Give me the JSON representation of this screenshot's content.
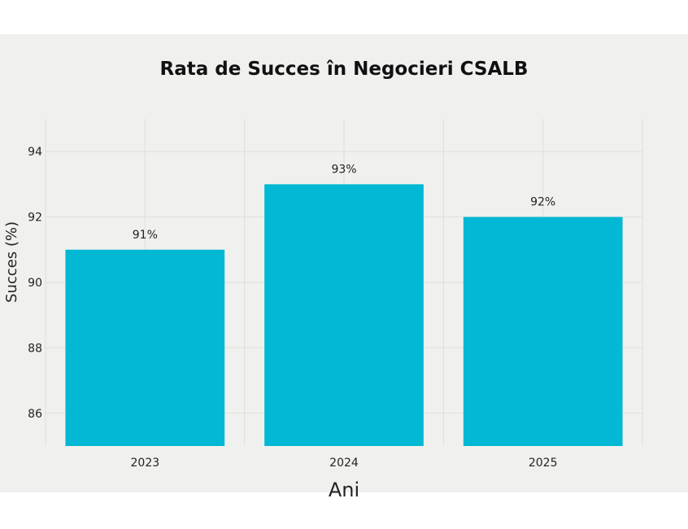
{
  "chart_data": {
    "type": "bar",
    "title": "Rata de Succes în Negocieri CSALB",
    "xlabel": "Ani",
    "ylabel": "Succes (%)",
    "categories": [
      "2023",
      "2024",
      "2025"
    ],
    "values": [
      91,
      93,
      92
    ],
    "data_labels": [
      "91%",
      "93%",
      "92%"
    ],
    "yticks": [
      "86",
      "88",
      "90",
      "92",
      "94"
    ],
    "ylim": [
      85,
      95
    ],
    "grid": true,
    "legend": "none",
    "colors": {
      "bar": "#02b8d4",
      "background": "#f0f1ee",
      "grid": "#dedfdc",
      "text": "#222222"
    }
  }
}
